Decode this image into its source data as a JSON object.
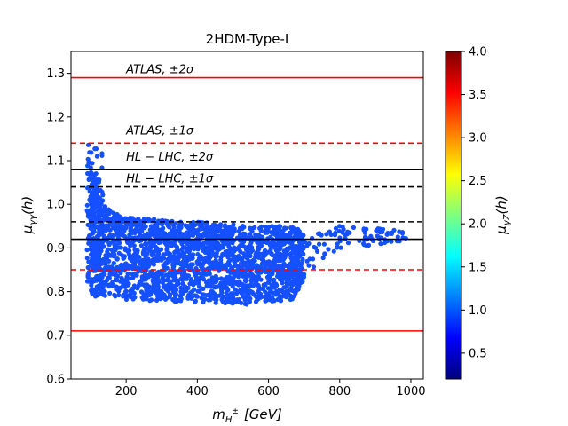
{
  "chart_data": {
    "type": "scatter",
    "title": "2HDM-Type-I",
    "xlabel": "m_{H^±} [GeV]",
    "xlabel_display": "m",
    "xlabel_sub": "H",
    "xlabel_sup": "±",
    "xlabel_units": "[GeV]",
    "ylabel": "μ_γγ(h)",
    "ylabel_display": "μ",
    "ylabel_sub": "γγ",
    "ylabel_arg": "(h)",
    "xlim": [
      45,
      1035
    ],
    "ylim": [
      0.6,
      1.35
    ],
    "xticks": [
      200,
      400,
      600,
      800,
      1000
    ],
    "xtick_labels": [
      "200",
      "400",
      "600",
      "800",
      "1000"
    ],
    "yticks": [
      0.6,
      0.7,
      0.8,
      0.9,
      1.0,
      1.1,
      1.2,
      1.3
    ],
    "ytick_labels": [
      "0.6",
      "0.7",
      "0.8",
      "0.9",
      "1.0",
      "1.1",
      "1.2",
      "1.3"
    ],
    "point_color": "#1450ff",
    "scatter_region": {
      "description": "dense band of points",
      "x_range": [
        90,
        1000
      ],
      "envelope": [
        {
          "x": 90,
          "ymin": 0.8,
          "ymax": 1.17
        },
        {
          "x": 100,
          "ymin": 0.79,
          "ymax": 1.1
        },
        {
          "x": 130,
          "ymin": 0.785,
          "ymax": 1.0
        },
        {
          "x": 200,
          "ymin": 0.78,
          "ymax": 0.97
        },
        {
          "x": 400,
          "ymin": 0.775,
          "ymax": 0.96
        },
        {
          "x": 560,
          "ymin": 0.77,
          "ymax": 0.95
        },
        {
          "x": 680,
          "ymin": 0.78,
          "ymax": 0.95
        },
        {
          "x": 700,
          "ymin": 0.83,
          "ymax": 0.94
        },
        {
          "x": 800,
          "ymin": 0.89,
          "ymax": 0.95
        },
        {
          "x": 1000,
          "ymin": 0.92,
          "ymax": 0.94
        }
      ]
    },
    "reference_lines": [
      {
        "name": "atlas-2sigma-upper",
        "y": 1.29,
        "color": "#ff0000",
        "style": "solid"
      },
      {
        "name": "atlas-1sigma-upper",
        "y": 1.14,
        "color": "#ff0000",
        "style": "dashed"
      },
      {
        "name": "hllhc-2sigma-upper",
        "y": 1.08,
        "color": "#000000",
        "style": "solid"
      },
      {
        "name": "hllhc-1sigma-upper",
        "y": 1.04,
        "color": "#000000",
        "style": "dashed"
      },
      {
        "name": "hllhc-1sigma-lower",
        "y": 0.96,
        "color": "#000000",
        "style": "dashed"
      },
      {
        "name": "hllhc-2sigma-lower",
        "y": 0.92,
        "color": "#000000",
        "style": "solid"
      },
      {
        "name": "atlas-1sigma-lower",
        "y": 0.85,
        "color": "#ff0000",
        "style": "dashed"
      },
      {
        "name": "atlas-2sigma-lower",
        "y": 0.71,
        "color": "#ff0000",
        "style": "solid"
      }
    ],
    "annotations": [
      {
        "name": "atlas-2sigma-label",
        "text": "ATLAS, ±2σ",
        "x": 200,
        "y": 1.3
      },
      {
        "name": "atlas-1sigma-label",
        "text": "ATLAS, ±1σ",
        "x": 200,
        "y": 1.16
      },
      {
        "name": "hllhc-2sigma-label",
        "text": "HL − LHC, ±2σ",
        "x": 200,
        "y": 1.1
      },
      {
        "name": "hllhc-1sigma-label",
        "text": "HL − LHC, ±1σ",
        "x": 200,
        "y": 1.05
      }
    ],
    "colorbar": {
      "label": "μ_γZ(h)",
      "label_display": "μ",
      "label_sub": "γZ",
      "label_arg": "(h)",
      "colormap": "jet",
      "range": [
        0.2,
        4.0
      ],
      "ticks": [
        0.5,
        1.0,
        1.5,
        2.0,
        2.5,
        3.0,
        3.5,
        4.0
      ],
      "tick_labels": [
        "0.5",
        "1.0",
        "1.5",
        "2.0",
        "2.5",
        "3.0",
        "3.5",
        "4.0"
      ],
      "colors": [
        "#00007f",
        "#0000ff",
        "#007fff",
        "#00ffff",
        "#7fff7f",
        "#ffff00",
        "#ff7f00",
        "#ff0000",
        "#7f0000"
      ]
    }
  }
}
